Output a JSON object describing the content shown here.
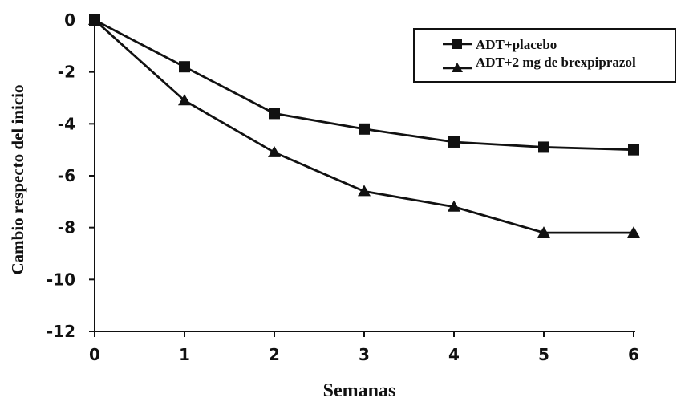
{
  "chart_data": {
    "type": "line",
    "xlabel": "Semanas",
    "ylabel": "Cambio respecto del inicio",
    "x": [
      0,
      1,
      2,
      3,
      4,
      5,
      6
    ],
    "xlim": [
      0,
      6
    ],
    "ylim": [
      -12,
      0
    ],
    "xticks": [
      "0",
      "1",
      "2",
      "3",
      "4",
      "5",
      "6"
    ],
    "yticks": [
      "0",
      "-2",
      "-4",
      "-6",
      "-8",
      "-10",
      "-12"
    ],
    "grid": false,
    "legend_position": "top-right",
    "series": [
      {
        "name": "ADT+placebo",
        "marker": "square",
        "color": "#111111",
        "values": [
          0,
          -1.8,
          -3.6,
          -4.2,
          -4.7,
          -4.9,
          -5.0
        ]
      },
      {
        "name": "ADT+2 mg de brexpiprazol",
        "marker": "triangle",
        "color": "#111111",
        "values": [
          0,
          -3.1,
          -5.1,
          -6.6,
          -7.2,
          -8.2,
          -8.2
        ]
      }
    ]
  }
}
